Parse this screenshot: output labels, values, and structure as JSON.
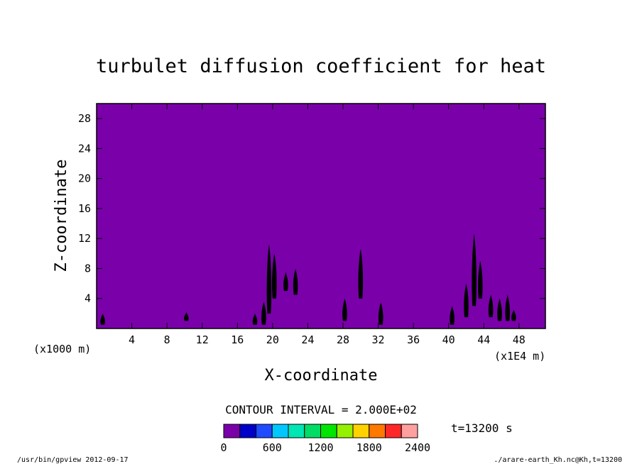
{
  "chart_data": {
    "type": "heatmap",
    "title": "turbulet diffusion coefficient for heat",
    "xlabel": "X-coordinate",
    "ylabel": "Z-coordinate",
    "x_unit_left": "(x1000 m)",
    "x_unit_right": "(x1E4 m)",
    "xlim": [
      0,
      51
    ],
    "ylim": [
      0,
      30
    ],
    "x_ticks": [
      "4",
      "8",
      "12",
      "16",
      "20",
      "24",
      "28",
      "32",
      "36",
      "40",
      "44",
      "48"
    ],
    "y_ticks": [
      "4",
      "8",
      "12",
      "16",
      "20",
      "24",
      "28"
    ],
    "background_color": "#7a00aa",
    "field_level": 0,
    "contour_interval_label": "CONTOUR INTERVAL = 2.000E+02",
    "time_label": "t=13200 s",
    "colorbar": {
      "colors": [
        "#7a00aa",
        "#0000c8",
        "#1e4bff",
        "#00c8ff",
        "#00e6b4",
        "#00dc64",
        "#00e600",
        "#96f000",
        "#ffd200",
        "#ff7800",
        "#ff2828",
        "#ffa0a0"
      ],
      "tick_labels": [
        "0",
        "600",
        "1200",
        "1800",
        "2400"
      ],
      "range": [
        0,
        2400
      ]
    },
    "turbulent_regions": [
      {
        "x": 0.7,
        "z_bottom": 0.5,
        "z_top": 2.0
      },
      {
        "x": 10.2,
        "z_bottom": 1.0,
        "z_top": 2.2
      },
      {
        "x": 18.0,
        "z_bottom": 0.5,
        "z_top": 2.0
      },
      {
        "x": 19.0,
        "z_bottom": 0.5,
        "z_top": 3.6
      },
      {
        "x": 19.6,
        "z_bottom": 2.0,
        "z_top": 11.2
      },
      {
        "x": 20.2,
        "z_bottom": 4.0,
        "z_top": 10.0
      },
      {
        "x": 21.5,
        "z_bottom": 5.0,
        "z_top": 7.5
      },
      {
        "x": 22.6,
        "z_bottom": 4.5,
        "z_top": 8.0
      },
      {
        "x": 28.2,
        "z_bottom": 1.0,
        "z_top": 4.0
      },
      {
        "x": 30.0,
        "z_bottom": 4.0,
        "z_top": 10.6
      },
      {
        "x": 32.3,
        "z_bottom": 0.5,
        "z_top": 3.5
      },
      {
        "x": 40.4,
        "z_bottom": 0.5,
        "z_top": 3.0
      },
      {
        "x": 42.0,
        "z_bottom": 1.5,
        "z_top": 6.0
      },
      {
        "x": 42.9,
        "z_bottom": 3.0,
        "z_top": 12.6
      },
      {
        "x": 43.6,
        "z_bottom": 4.0,
        "z_top": 9.0
      },
      {
        "x": 44.8,
        "z_bottom": 1.5,
        "z_top": 4.5
      },
      {
        "x": 45.8,
        "z_bottom": 1.0,
        "z_top": 4.0
      },
      {
        "x": 46.7,
        "z_bottom": 1.0,
        "z_top": 4.5
      },
      {
        "x": 47.4,
        "z_bottom": 1.0,
        "z_top": 2.5
      }
    ]
  },
  "footer": {
    "left": "/usr/bin/gpview  2012-09-17",
    "right": "./arare-earth_Kh.nc@Kh,t=13200"
  }
}
